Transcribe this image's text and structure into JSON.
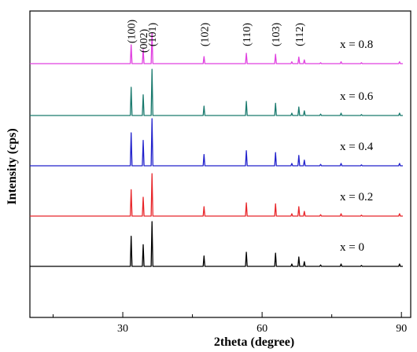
{
  "chart_data": {
    "type": "line",
    "title": "",
    "xlabel": "2theta (degree)",
    "ylabel": "Intensity (cps)",
    "xlim": [
      10,
      92
    ],
    "xticks": [
      30,
      60,
      90
    ],
    "xtick_labels": [
      "30",
      "60",
      "90"
    ],
    "grid": false,
    "legend": "inline labels at right of each trace",
    "peak_labels": [
      {
        "label": "(100)",
        "x": 31.8
      },
      {
        "label": "(002)",
        "x": 34.4
      },
      {
        "label": "(101)",
        "x": 36.3
      },
      {
        "label": "(102)",
        "x": 47.5
      },
      {
        "label": "(110)",
        "x": 56.6
      },
      {
        "label": "(103)",
        "x": 62.9
      },
      {
        "label": "(112)",
        "x": 67.9
      }
    ],
    "peaks": [
      {
        "x": 31.8,
        "values": [
          0.64,
          0.56,
          0.7,
          0.6,
          0.4
        ]
      },
      {
        "x": 34.4,
        "values": [
          0.46,
          0.4,
          0.54,
          0.44,
          0.3
        ]
      },
      {
        "x": 36.3,
        "values": [
          0.95,
          0.9,
          1.0,
          0.98,
          0.65
        ]
      },
      {
        "x": 47.5,
        "values": [
          0.22,
          0.2,
          0.24,
          0.2,
          0.15
        ]
      },
      {
        "x": 56.6,
        "values": [
          0.3,
          0.28,
          0.32,
          0.3,
          0.22
        ]
      },
      {
        "x": 62.9,
        "values": [
          0.28,
          0.26,
          0.28,
          0.26,
          0.2
        ]
      },
      {
        "x": 66.4,
        "values": [
          0.05,
          0.05,
          0.05,
          0.05,
          0.04
        ]
      },
      {
        "x": 67.9,
        "values": [
          0.2,
          0.2,
          0.22,
          0.18,
          0.14
        ]
      },
      {
        "x": 69.1,
        "values": [
          0.1,
          0.1,
          0.12,
          0.1,
          0.08
        ]
      },
      {
        "x": 72.6,
        "values": [
          0.03,
          0.03,
          0.03,
          0.03,
          0.02
        ]
      },
      {
        "x": 77.0,
        "values": [
          0.05,
          0.05,
          0.05,
          0.05,
          0.04
        ]
      },
      {
        "x": 81.4,
        "values": [
          0.02,
          0.02,
          0.02,
          0.02,
          0.02
        ]
      },
      {
        "x": 89.6,
        "values": [
          0.05,
          0.05,
          0.05,
          0.05,
          0.04
        ]
      }
    ],
    "series": [
      {
        "name": "x = 0",
        "color": "#000000"
      },
      {
        "name": "x = 0.2",
        "color": "#e8262a"
      },
      {
        "name": "x = 0.4",
        "color": "#2222cc"
      },
      {
        "name": "x = 0.6",
        "color": "#1a7a6e"
      },
      {
        "name": "x = 0.8",
        "color": "#e040e0"
      }
    ]
  }
}
